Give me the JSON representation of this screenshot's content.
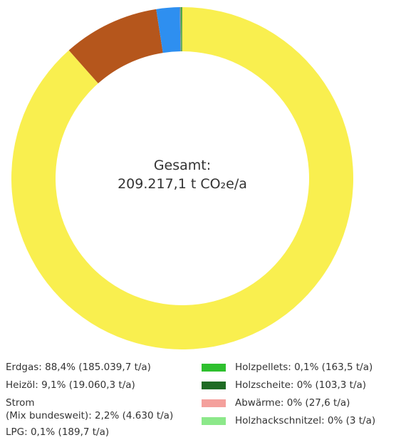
{
  "chart_data": {
    "type": "pie",
    "donut": true,
    "center_label": [
      "Gesamt:",
      "209.217,1 t CO₂e/a"
    ],
    "categories": [
      "Erdgas: 88,4% (185.039,7 t/a)",
      "Heizöl: 9,1% (19.060,3 t/a)",
      "Strom\n(Mix bundesweit): 2,2% (4.630 t/a)",
      "LPG: 0,1% (189,7 t/a)",
      "Holzpellets: 0,1% (163,5 t/a)",
      "Holzscheite: 0% (103,3 t/a)",
      "Abwärme: 0% (27,6 t/a)",
      "Holzhackschnitzel: 0% (3 t/a)"
    ],
    "values": [
      185039.7,
      19060.3,
      4630,
      189.7,
      163.5,
      103.3,
      27.6,
      3
    ],
    "colors": [
      "#f9ef4f",
      "#b5561c",
      "#2e8ff0",
      "#8a8a8a",
      "#2ec02e",
      "#1f6b24",
      "#f4a09c",
      "#8ce88a"
    ]
  }
}
